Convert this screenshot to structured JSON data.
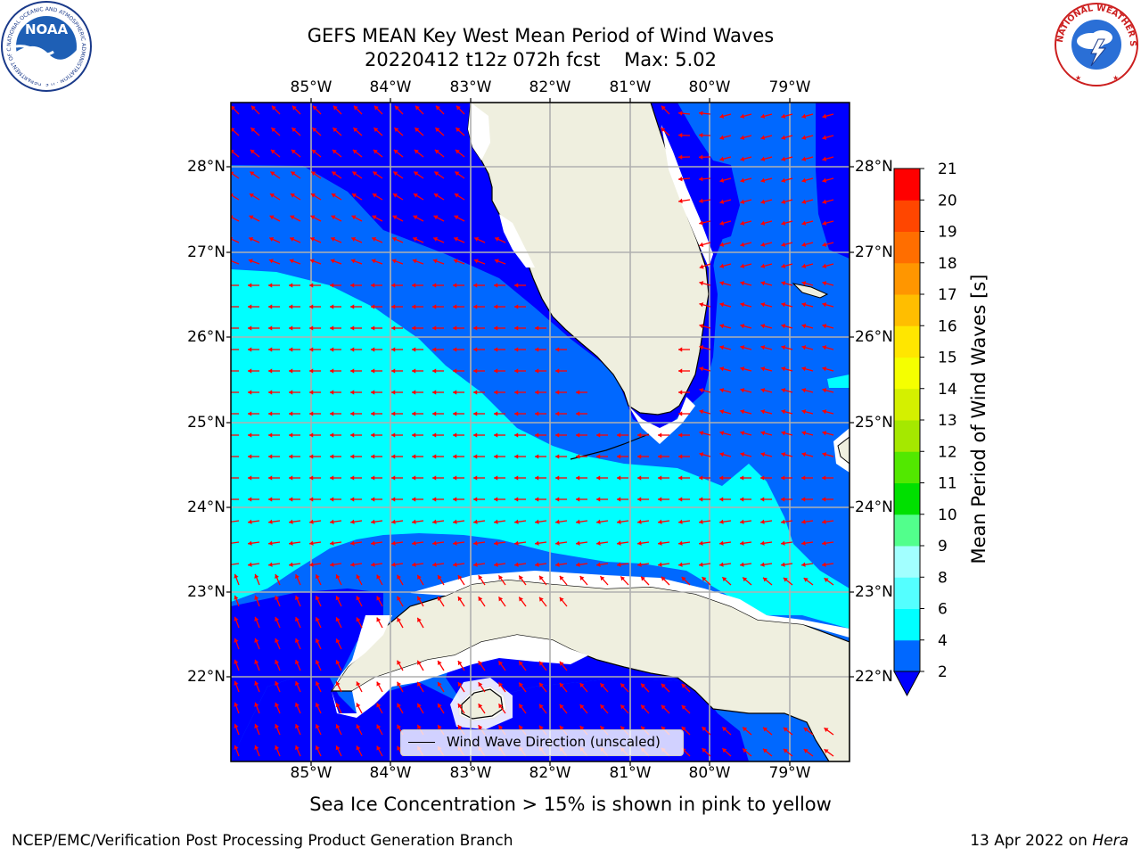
{
  "title": {
    "line1": "GEFS MEAN Key West Mean Period of Wind Waves",
    "line2": "20220412 t12z 072h fcst    Max: 5.02"
  },
  "map": {
    "lon_ticks": [
      "85°W",
      "84°W",
      "83°W",
      "82°W",
      "81°W",
      "80°W",
      "79°W"
    ],
    "lat_ticks": [
      "28°N",
      "27°N",
      "26°N",
      "25°N",
      "24°N",
      "23°N",
      "22°N"
    ],
    "legend_label": "Wind Wave Direction (unscaled)",
    "colors": {
      "land": "#efefdf",
      "coast": "#000000",
      "grid": "#b0b0b0",
      "arrow": "#ff0000"
    }
  },
  "colorbar": {
    "label": "Mean Period of Wind Waves [s]",
    "ticks": [
      "2",
      "4",
      "6",
      "8",
      "9",
      "10",
      "11",
      "12",
      "13",
      "14",
      "15",
      "16",
      "17",
      "18",
      "19",
      "20",
      "21"
    ],
    "levels": [
      {
        "from": 2,
        "to": 4,
        "color": "#0068ff"
      },
      {
        "from": 4,
        "to": 6,
        "color": "#00ffff"
      },
      {
        "from": 6,
        "to": 8,
        "color": "#54ffff"
      },
      {
        "from": 8,
        "to": 9,
        "color": "#a2ffff"
      },
      {
        "from": 9,
        "to": 10,
        "color": "#52ff8c"
      },
      {
        "from": 10,
        "to": 11,
        "color": "#00e000"
      },
      {
        "from": 11,
        "to": 12,
        "color": "#52e800"
      },
      {
        "from": 12,
        "to": 13,
        "color": "#a5e800"
      },
      {
        "from": 13,
        "to": 14,
        "color": "#d4f000"
      },
      {
        "from": 14,
        "to": 15,
        "color": "#f5ff00"
      },
      {
        "from": 15,
        "to": 16,
        "color": "#ffe600"
      },
      {
        "from": 16,
        "to": 17,
        "color": "#ffbe00"
      },
      {
        "from": 17,
        "to": 18,
        "color": "#ff9600"
      },
      {
        "from": 18,
        "to": 19,
        "color": "#ff6e00"
      },
      {
        "from": 19,
        "to": 20,
        "color": "#ff4600"
      },
      {
        "from": 20,
        "to": 21,
        "color": "#ff0000"
      }
    ],
    "under_color": "#0000ff"
  },
  "contour_colors": {
    "period_lt_2": "#0000ff",
    "period_2_4": "#0068ff",
    "period_4_6": "#00ffff"
  },
  "notes": {
    "sea_ice": "Sea Ice Concentration > 15% is shown in pink to yellow"
  },
  "footer": {
    "left": "NCEP/EMC/Verification Post Processing Product Generation Branch",
    "right_text": "13 Apr 2022 on ",
    "right_italic": "Hera"
  },
  "logos": {
    "noaa": "NOAA",
    "noaa_ring_text": "NATIONAL OCEANIC AND ATMOSPHERIC ADMINISTRATION · U.S. DEPARTMENT OF COMMERCE",
    "nws_ring_text": "NATIONAL WEATHER SERVICE"
  }
}
